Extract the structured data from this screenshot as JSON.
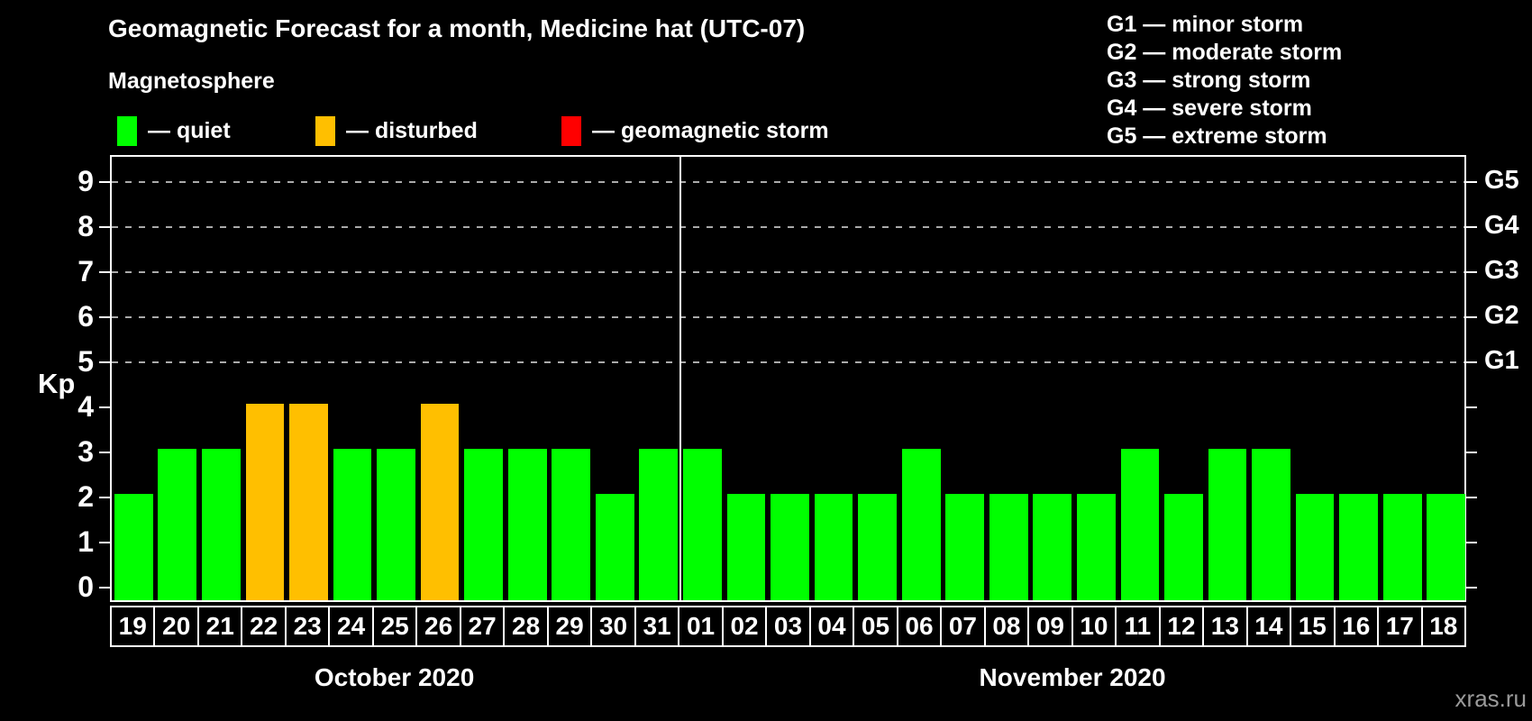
{
  "header": {
    "title": "Geomagnetic Forecast for a month, Medicine hat (UTC-07)"
  },
  "magnetosphere_legend": {
    "title": "Magnetosphere",
    "items": [
      {
        "id": "quiet",
        "label": "— quiet",
        "color": "#00ff00"
      },
      {
        "id": "disturbed",
        "label": "— disturbed",
        "color": "#ffbf00"
      },
      {
        "id": "storm",
        "label": "— geomagnetic storm",
        "color": "#ff0000"
      }
    ]
  },
  "g_scale_legend": {
    "items": [
      "G1 — minor storm",
      "G2 — moderate storm",
      "G3 — strong storm",
      "G4 — severe storm",
      "G5 — extreme storm"
    ]
  },
  "watermark": "xras.ru",
  "chart_data": {
    "type": "bar",
    "title": "Geomagnetic Forecast for a month, Medicine hat (UTC-07)",
    "ylabel": "Kp",
    "ylim": [
      0,
      9
    ],
    "y_ticks": [
      0,
      1,
      2,
      3,
      4,
      5,
      6,
      7,
      8,
      9
    ],
    "grid_levels": [
      5,
      6,
      7,
      8,
      9
    ],
    "grid_on": true,
    "legend_position": "top-left",
    "right_axis_labels": [
      {
        "text": "G1",
        "kp": 5
      },
      {
        "text": "G2",
        "kp": 6
      },
      {
        "text": "G3",
        "kp": 7
      },
      {
        "text": "G4",
        "kp": 8
      },
      {
        "text": "G5",
        "kp": 9
      }
    ],
    "categories": [
      "19",
      "20",
      "21",
      "22",
      "23",
      "24",
      "25",
      "26",
      "27",
      "28",
      "29",
      "30",
      "31",
      "01",
      "02",
      "03",
      "04",
      "05",
      "06",
      "07",
      "08",
      "09",
      "10",
      "11",
      "12",
      "13",
      "14",
      "15",
      "16",
      "17",
      "18"
    ],
    "values": [
      2,
      3,
      3,
      4,
      4,
      3,
      3,
      4,
      3,
      3,
      3,
      2,
      3,
      3,
      2,
      2,
      2,
      2,
      3,
      2,
      2,
      2,
      2,
      3,
      2,
      3,
      3,
      2,
      2,
      2,
      2
    ],
    "states": [
      "quiet",
      "quiet",
      "quiet",
      "disturbed",
      "disturbed",
      "quiet",
      "quiet",
      "disturbed",
      "quiet",
      "quiet",
      "quiet",
      "quiet",
      "quiet",
      "quiet",
      "quiet",
      "quiet",
      "quiet",
      "quiet",
      "quiet",
      "quiet",
      "quiet",
      "quiet",
      "quiet",
      "quiet",
      "quiet",
      "quiet",
      "quiet",
      "quiet",
      "quiet",
      "quiet",
      "quiet"
    ],
    "colors": {
      "quiet": "#00ff00",
      "disturbed": "#ffbf00",
      "storm": "#ff0000"
    },
    "months": [
      {
        "label": "October 2020",
        "days": 13
      },
      {
        "label": "November 2020",
        "days": 18
      }
    ]
  }
}
